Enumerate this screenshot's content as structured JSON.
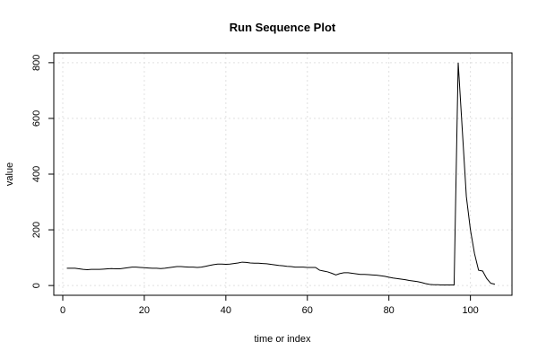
{
  "chart_data": {
    "type": "line",
    "title": "Run Sequence Plot",
    "xlabel": "time or index",
    "ylabel": "value",
    "xlim": [
      -2.2,
      110.2
    ],
    "ylim": [
      -35,
      835
    ],
    "x_ticks": [
      0,
      20,
      40,
      60,
      80,
      100
    ],
    "y_ticks": [
      0,
      200,
      400,
      600,
      800
    ],
    "grid": true,
    "series": [
      {
        "x": [
          1,
          2,
          3,
          4,
          5,
          6,
          7,
          8,
          9,
          10,
          11,
          12,
          13,
          14,
          15,
          16,
          17,
          18,
          19,
          20,
          21,
          22,
          23,
          24,
          25,
          26,
          27,
          28,
          29,
          30,
          31,
          32,
          33,
          34,
          35,
          36,
          37,
          38,
          39,
          40,
          41,
          42,
          43,
          44,
          45,
          46,
          47,
          48,
          49,
          50,
          51,
          52,
          53,
          54,
          55,
          56,
          57,
          58,
          59,
          60,
          61,
          62,
          63,
          64,
          65,
          66,
          67,
          68,
          69,
          70,
          71,
          72,
          73,
          74,
          75,
          76,
          77,
          78,
          79,
          80,
          81,
          82,
          83,
          84,
          85,
          86,
          87,
          88,
          89,
          90,
          91,
          92,
          93,
          94,
          95,
          96,
          97,
          98,
          99,
          100,
          101,
          102,
          103,
          104,
          105,
          106
        ],
        "y": [
          62,
          62,
          62,
          60,
          58,
          57,
          58,
          58,
          58,
          59,
          60,
          61,
          60,
          60,
          62,
          64,
          66,
          66,
          65,
          64,
          63,
          62,
          62,
          61,
          62,
          64,
          66,
          68,
          68,
          67,
          66,
          66,
          65,
          66,
          69,
          72,
          75,
          77,
          77,
          76,
          77,
          79,
          81,
          84,
          83,
          81,
          80,
          80,
          79,
          78,
          76,
          74,
          72,
          71,
          69,
          68,
          66,
          66,
          66,
          65,
          65,
          65,
          55,
          52,
          49,
          44,
          38,
          43,
          46,
          46,
          44,
          42,
          40,
          40,
          39,
          38,
          37,
          35,
          33,
          30,
          27,
          25,
          23,
          21,
          18,
          16,
          14,
          11,
          7,
          4,
          3,
          3,
          2,
          2,
          2,
          2,
          800,
          560,
          320,
          200,
          115,
          55,
          52,
          25,
          8,
          5
        ]
      }
    ]
  }
}
